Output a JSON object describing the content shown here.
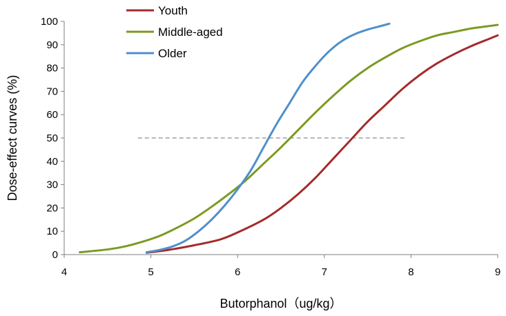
{
  "chart_data": {
    "type": "line",
    "title": "",
    "xlabel": "Butorphanol（ug/kg）",
    "ylabel": "Dose-effect curves (%)",
    "xlim": [
      4,
      9
    ],
    "ylim": [
      0,
      100
    ],
    "xticks": [
      "4",
      "5",
      "6",
      "7",
      "8",
      "9"
    ],
    "yticks": [
      "0",
      "10",
      "20",
      "30",
      "40",
      "50",
      "60",
      "70",
      "80",
      "90",
      "100"
    ],
    "grid": false,
    "legend_position": "top-center",
    "reference_line": {
      "y": 50,
      "x_start": 4.85,
      "x_end": 7.95,
      "style": "dashed",
      "color": "#a0a0a0"
    },
    "series": [
      {
        "name": "Youth",
        "color": "#a52a2a",
        "points": [
          [
            4.95,
            0.8
          ],
          [
            5.2,
            2
          ],
          [
            5.5,
            4
          ],
          [
            5.8,
            6.5
          ],
          [
            6.0,
            9.5
          ],
          [
            6.3,
            15
          ],
          [
            6.5,
            20
          ],
          [
            6.7,
            26
          ],
          [
            6.9,
            33
          ],
          [
            7.1,
            41
          ],
          [
            7.3,
            49
          ],
          [
            7.5,
            57
          ],
          [
            7.7,
            64
          ],
          [
            7.9,
            71
          ],
          [
            8.1,
            77
          ],
          [
            8.3,
            82
          ],
          [
            8.5,
            86
          ],
          [
            8.7,
            89.5
          ],
          [
            8.9,
            92.5
          ],
          [
            9.0,
            94
          ]
        ]
      },
      {
        "name": "Middle-aged",
        "color": "#7a9a22",
        "points": [
          [
            4.18,
            1
          ],
          [
            4.5,
            2.2
          ],
          [
            4.7,
            3.5
          ],
          [
            4.9,
            5.5
          ],
          [
            5.1,
            8
          ],
          [
            5.3,
            11.5
          ],
          [
            5.5,
            15.5
          ],
          [
            5.7,
            20.5
          ],
          [
            5.9,
            26
          ],
          [
            6.1,
            32
          ],
          [
            6.3,
            39
          ],
          [
            6.5,
            46
          ],
          [
            6.7,
            53.5
          ],
          [
            6.9,
            61
          ],
          [
            7.1,
            68
          ],
          [
            7.3,
            74.5
          ],
          [
            7.5,
            80
          ],
          [
            7.7,
            84.5
          ],
          [
            7.9,
            88.5
          ],
          [
            8.1,
            91.5
          ],
          [
            8.3,
            94
          ],
          [
            8.5,
            95.5
          ],
          [
            8.7,
            97
          ],
          [
            8.9,
            98
          ],
          [
            9.0,
            98.5
          ]
        ]
      },
      {
        "name": "Older",
        "color": "#4f8fca",
        "points": [
          [
            4.95,
            1
          ],
          [
            5.1,
            2
          ],
          [
            5.25,
            3.5
          ],
          [
            5.4,
            6
          ],
          [
            5.55,
            10
          ],
          [
            5.7,
            15
          ],
          [
            5.85,
            21
          ],
          [
            6.0,
            28
          ],
          [
            6.15,
            36
          ],
          [
            6.3,
            46
          ],
          [
            6.45,
            56
          ],
          [
            6.6,
            65
          ],
          [
            6.75,
            74
          ],
          [
            6.9,
            81
          ],
          [
            7.05,
            87
          ],
          [
            7.2,
            91.5
          ],
          [
            7.35,
            94.5
          ],
          [
            7.5,
            96.5
          ],
          [
            7.65,
            98
          ],
          [
            7.75,
            99
          ]
        ]
      }
    ]
  }
}
